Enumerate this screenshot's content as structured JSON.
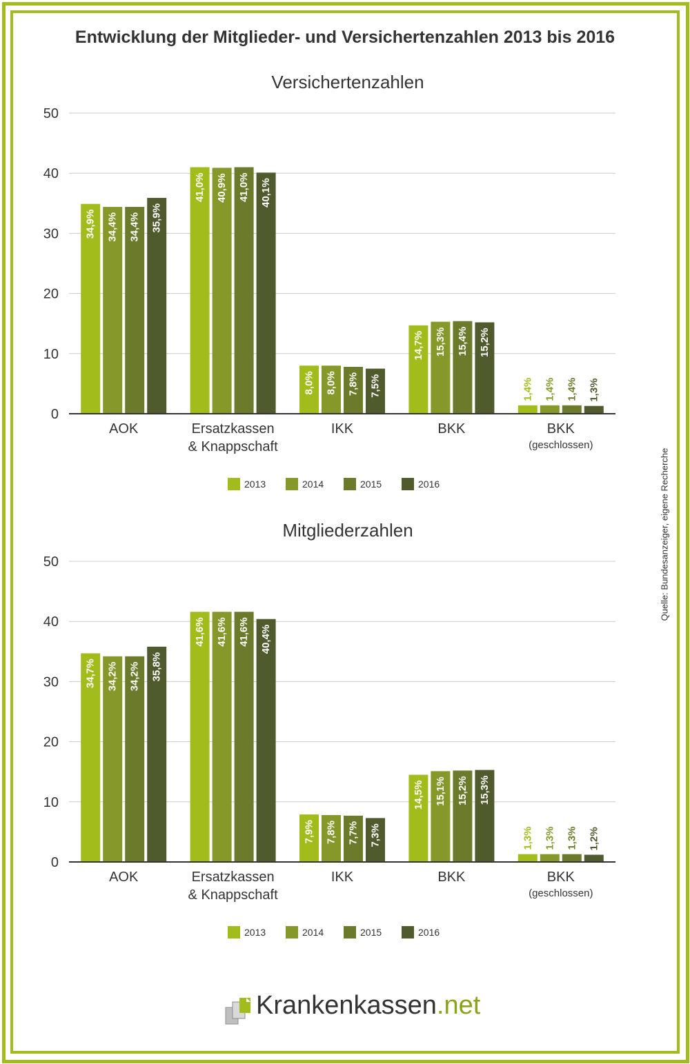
{
  "title": "Entwicklung der Mitglieder- und Versichertenzahlen 2013 bis 2016",
  "source": "Quelle: Bundesanzeiger, eigene Recherche",
  "logo": {
    "name": "Krankenkassen",
    "tld": ".net"
  },
  "colors": {
    "2013": "#a2bd1b",
    "2014": "#86982a",
    "2015": "#6b7a2b",
    "2016": "#4f5a2d",
    "frame": "#a2bd1b",
    "grid": "#cccccc"
  },
  "chart_data": [
    {
      "type": "bar",
      "title": "Versichertenzahlen",
      "categories": [
        "AOK",
        "Ersatzkassen\n& Knappschaft",
        "IKK",
        "BKK",
        "BKK\n(geschlossen)"
      ],
      "series": [
        {
          "name": "2013",
          "values": [
            34.9,
            41.0,
            8.0,
            14.7,
            1.4
          ],
          "labels": [
            "34,9%",
            "41,0%",
            "8,0%",
            "14,7%",
            "1,4%"
          ]
        },
        {
          "name": "2014",
          "values": [
            34.4,
            40.9,
            8.0,
            15.3,
            1.4
          ],
          "labels": [
            "34,4%",
            "40,9%",
            "8,0%",
            "15,3%",
            "1,4%"
          ]
        },
        {
          "name": "2015",
          "values": [
            34.4,
            41.0,
            7.8,
            15.4,
            1.4
          ],
          "labels": [
            "34,4%",
            "41,0%",
            "7,8%",
            "15,4%",
            "1,4%"
          ]
        },
        {
          "name": "2016",
          "values": [
            35.9,
            40.1,
            7.5,
            15.2,
            1.3
          ],
          "labels": [
            "35,9%",
            "40,1%",
            "7,5%",
            "15,2%",
            "1,3%"
          ]
        }
      ],
      "ylim": [
        0,
        50
      ],
      "yticks": [
        "0",
        "10",
        "20",
        "30",
        "40",
        "50"
      ],
      "grid": true,
      "legend": "bottom-center"
    },
    {
      "type": "bar",
      "title": "Mitgliederzahlen",
      "categories": [
        "AOK",
        "Ersatzkassen\n& Knappschaft",
        "IKK",
        "BKK",
        "BKK\n(geschlossen)"
      ],
      "series": [
        {
          "name": "2013",
          "values": [
            34.7,
            41.6,
            7.9,
            14.5,
            1.3
          ],
          "labels": [
            "34,7%",
            "41,6%",
            "7,9%",
            "14,5%",
            "1,3%"
          ]
        },
        {
          "name": "2014",
          "values": [
            34.2,
            41.6,
            7.8,
            15.1,
            1.3
          ],
          "labels": [
            "34,2%",
            "41,6%",
            "7,8%",
            "15,1%",
            "1,3%"
          ]
        },
        {
          "name": "2015",
          "values": [
            34.2,
            41.6,
            7.7,
            15.2,
            1.3
          ],
          "labels": [
            "34,2%",
            "41,6%",
            "7,7%",
            "15,2%",
            "1,3%"
          ]
        },
        {
          "name": "2016",
          "values": [
            35.8,
            40.4,
            7.3,
            15.3,
            1.2
          ],
          "labels": [
            "35,8%",
            "40,4%",
            "7,3%",
            "15,3%",
            "1,2%"
          ]
        }
      ],
      "ylim": [
        0,
        50
      ],
      "yticks": [
        "0",
        "10",
        "20",
        "30",
        "40",
        "50"
      ],
      "grid": true,
      "legend": "bottom-center"
    }
  ]
}
